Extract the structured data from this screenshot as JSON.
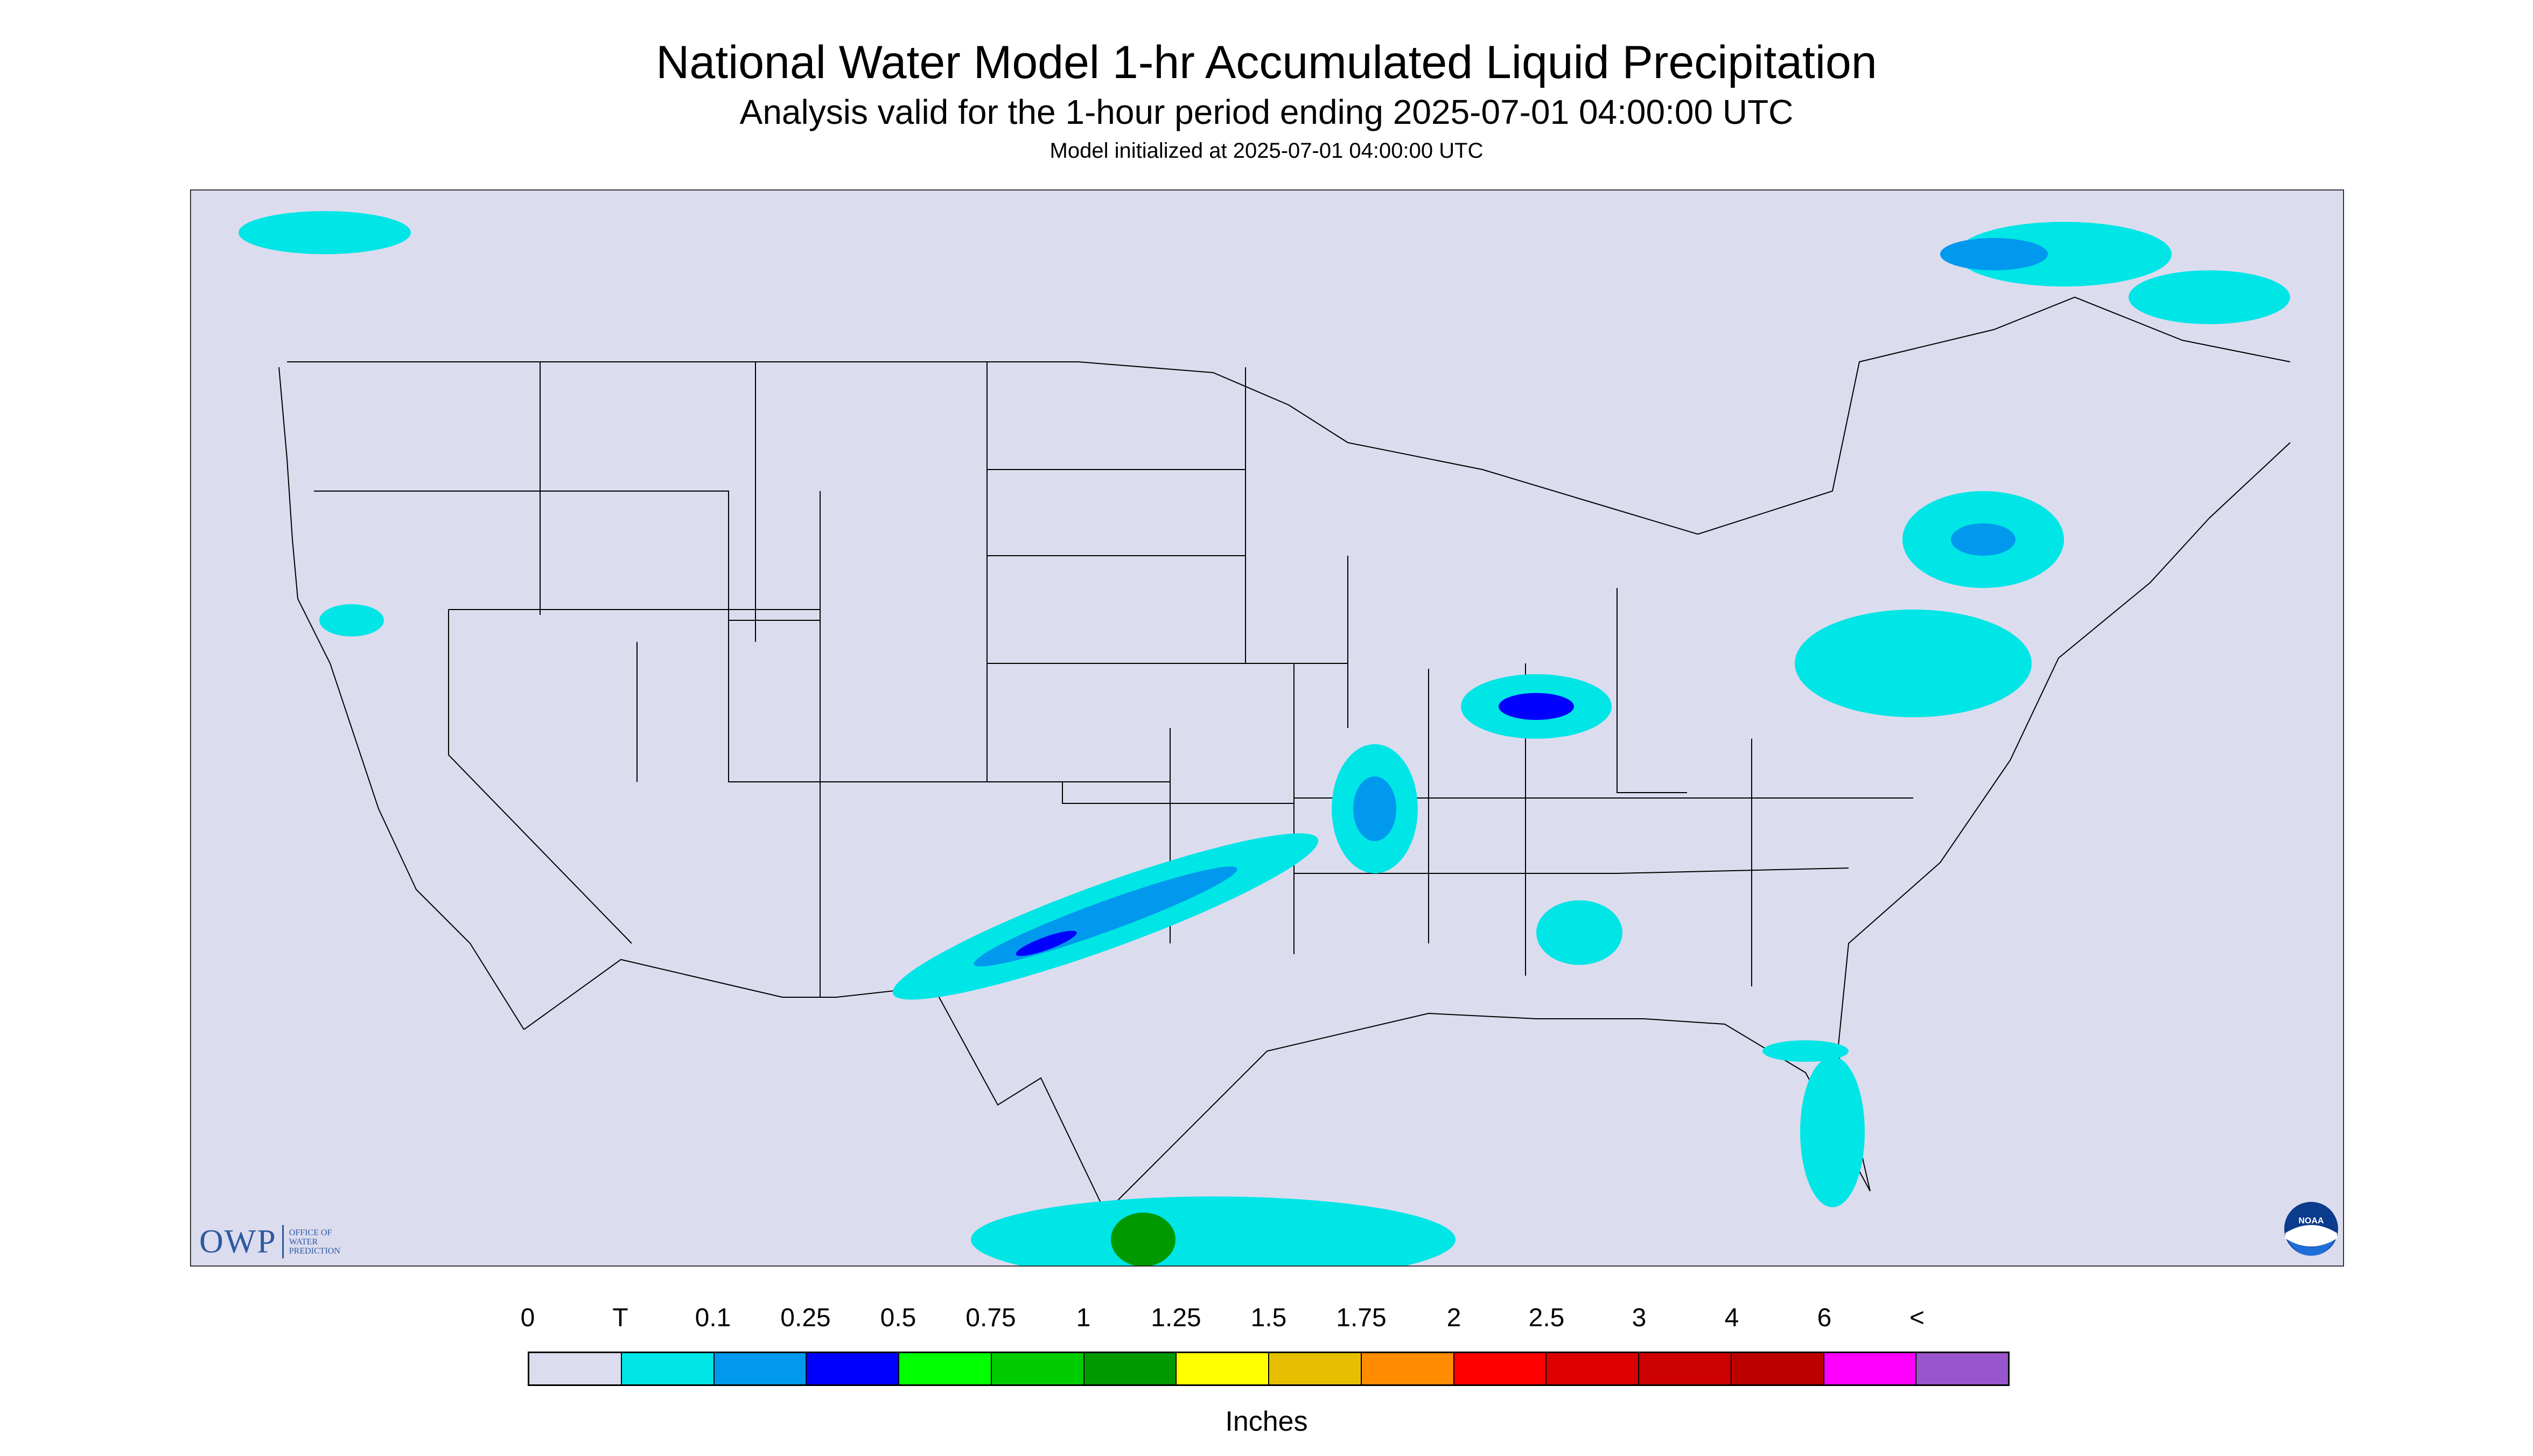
{
  "header": {
    "title": "National Water Model 1-hr Accumulated Liquid Precipitation",
    "subtitle": "Analysis valid for the 1-hour period ending 2025-07-01 04:00:00 UTC",
    "init": "Model initialized at 2025-07-01 04:00:00 UTC"
  },
  "logos": {
    "owp_main": "OWP",
    "owp_sub": [
      "OFFICE OF",
      "WATER",
      "PREDICTION"
    ],
    "noaa": "NOAA"
  },
  "colors": {
    "background_map": "#dcdcef",
    "land": "#dcdcef",
    "border_lines": "#000000"
  },
  "colorbar": {
    "labels": [
      "0",
      "T",
      "0.1",
      "0.25",
      "0.5",
      "0.75",
      "1",
      "1.25",
      "1.5",
      "1.75",
      "2",
      "2.5",
      "3",
      "4",
      "6",
      "<"
    ],
    "colors": [
      "#dcdcef",
      "#00e5e5",
      "#0099ee",
      "#0000ff",
      "#00ff00",
      "#00cc00",
      "#009900",
      "#ffff00",
      "#e5bf00",
      "#ff8c00",
      "#ff0000",
      "#dd0000",
      "#cc0000",
      "#bb0000",
      "#ff00ff",
      "#9955cc"
    ],
    "units": "Inches"
  }
}
